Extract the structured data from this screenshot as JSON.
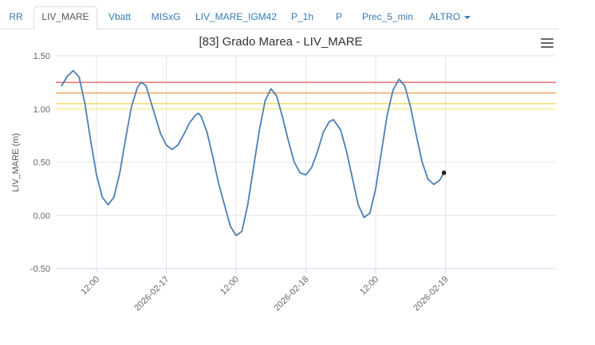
{
  "tabs": [
    {
      "label": "RR",
      "active": false
    },
    {
      "label": "LIV_MARE",
      "active": true
    },
    {
      "label": "Vbatt",
      "active": false
    },
    {
      "label": "MISxG",
      "active": false
    },
    {
      "label": "LIV_MARE_IGM42",
      "active": false
    },
    {
      "label": "P_1h",
      "active": false
    },
    {
      "label": "P",
      "active": false
    },
    {
      "label": "Prec_5_min",
      "active": false
    },
    {
      "label": "ALTRO",
      "active": false,
      "dropdown": true
    }
  ],
  "menu_icon": "hamburger-menu-icon",
  "chart_data": {
    "type": "line",
    "title": "[83] Grado Marea - LIV_MARE",
    "ylabel": "LIV_MARE (m)",
    "xlabel": "",
    "ylim": [
      -0.5,
      1.5
    ],
    "yticks": [
      -0.5,
      0.0,
      0.5,
      1.0,
      1.5
    ],
    "ytick_labels": [
      "-0.50",
      "0.00",
      "0.50",
      "1.00",
      "1.50"
    ],
    "xlim": [
      "2026-02-16T05:00",
      "2026-02-19T19:00"
    ],
    "xticks": [
      {
        "t": "2026-02-16T12:00",
        "label": "12:00"
      },
      {
        "t": "2026-02-17T00:00",
        "label": "2026-02-17"
      },
      {
        "t": "2026-02-17T12:00",
        "label": "12:00"
      },
      {
        "t": "2026-02-18T00:00",
        "label": "2026-02-18"
      },
      {
        "t": "2026-02-18T12:00",
        "label": "12:00"
      },
      {
        "t": "2026-02-19T00:00",
        "label": "2026-02-19"
      }
    ],
    "grid": true,
    "thresholds": [
      {
        "value": 1.25,
        "color": "#e8726e"
      },
      {
        "value": 1.15,
        "color": "#f0a35a"
      },
      {
        "value": 1.05,
        "color": "#f4d85a"
      },
      {
        "value": 1.0,
        "color": "#f6ee9c"
      }
    ],
    "series": [
      {
        "color": "#4a7fb5",
        "points": [
          [
            "2026-02-16T06:00",
            1.22
          ],
          [
            "2026-02-16T07:00",
            1.31
          ],
          [
            "2026-02-16T08:00",
            1.36
          ],
          [
            "2026-02-16T09:00",
            1.3
          ],
          [
            "2026-02-16T10:00",
            1.05
          ],
          [
            "2026-02-16T11:00",
            0.7
          ],
          [
            "2026-02-16T12:00",
            0.38
          ],
          [
            "2026-02-16T13:00",
            0.17
          ],
          [
            "2026-02-16T14:00",
            0.1
          ],
          [
            "2026-02-16T15:00",
            0.17
          ],
          [
            "2026-02-16T16:00",
            0.4
          ],
          [
            "2026-02-16T17:00",
            0.72
          ],
          [
            "2026-02-16T18:00",
            1.02
          ],
          [
            "2026-02-16T19:00",
            1.2
          ],
          [
            "2026-02-16T19:40",
            1.25
          ],
          [
            "2026-02-16T20:30",
            1.22
          ],
          [
            "2026-02-16T22:00",
            0.95
          ],
          [
            "2026-02-16T23:00",
            0.77
          ],
          [
            "2026-02-17T00:00",
            0.66
          ],
          [
            "2026-02-17T01:00",
            0.62
          ],
          [
            "2026-02-17T02:00",
            0.66
          ],
          [
            "2026-02-17T03:00",
            0.76
          ],
          [
            "2026-02-17T04:00",
            0.87
          ],
          [
            "2026-02-17T05:00",
            0.94
          ],
          [
            "2026-02-17T05:30",
            0.96
          ],
          [
            "2026-02-17T06:00",
            0.93
          ],
          [
            "2026-02-17T07:00",
            0.78
          ],
          [
            "2026-02-17T08:00",
            0.55
          ],
          [
            "2026-02-17T09:00",
            0.3
          ],
          [
            "2026-02-17T10:00",
            0.1
          ],
          [
            "2026-02-17T11:00",
            -0.1
          ],
          [
            "2026-02-17T12:00",
            -0.19
          ],
          [
            "2026-02-17T13:00",
            -0.15
          ],
          [
            "2026-02-17T14:00",
            0.1
          ],
          [
            "2026-02-17T15:00",
            0.45
          ],
          [
            "2026-02-17T16:00",
            0.8
          ],
          [
            "2026-02-17T17:00",
            1.08
          ],
          [
            "2026-02-17T18:00",
            1.19
          ],
          [
            "2026-02-17T19:00",
            1.12
          ],
          [
            "2026-02-17T20:00",
            0.92
          ],
          [
            "2026-02-17T21:00",
            0.7
          ],
          [
            "2026-02-17T22:00",
            0.5
          ],
          [
            "2026-02-17T23:00",
            0.4
          ],
          [
            "2026-02-18T00:00",
            0.38
          ],
          [
            "2026-02-18T01:00",
            0.45
          ],
          [
            "2026-02-18T02:00",
            0.6
          ],
          [
            "2026-02-18T03:00",
            0.78
          ],
          [
            "2026-02-18T04:00",
            0.88
          ],
          [
            "2026-02-18T04:45",
            0.9
          ],
          [
            "2026-02-18T06:00",
            0.8
          ],
          [
            "2026-02-18T07:00",
            0.6
          ],
          [
            "2026-02-18T08:00",
            0.35
          ],
          [
            "2026-02-18T09:00",
            0.1
          ],
          [
            "2026-02-18T10:00",
            -0.02
          ],
          [
            "2026-02-18T11:00",
            0.02
          ],
          [
            "2026-02-18T12:00",
            0.25
          ],
          [
            "2026-02-18T13:00",
            0.6
          ],
          [
            "2026-02-18T14:00",
            0.95
          ],
          [
            "2026-02-18T15:00",
            1.18
          ],
          [
            "2026-02-18T16:00",
            1.28
          ],
          [
            "2026-02-18T17:00",
            1.22
          ],
          [
            "2026-02-18T18:00",
            1.02
          ],
          [
            "2026-02-18T19:00",
            0.75
          ],
          [
            "2026-02-18T20:00",
            0.5
          ],
          [
            "2026-02-18T21:00",
            0.34
          ],
          [
            "2026-02-18T22:00",
            0.29
          ],
          [
            "2026-02-18T23:00",
            0.33
          ],
          [
            "2026-02-18T23:45",
            0.4
          ]
        ]
      }
    ]
  }
}
